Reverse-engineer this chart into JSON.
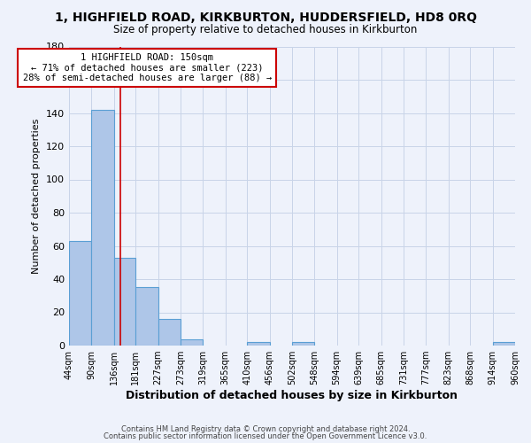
{
  "title": "1, HIGHFIELD ROAD, KIRKBURTON, HUDDERSFIELD, HD8 0RQ",
  "subtitle": "Size of property relative to detached houses in Kirkburton",
  "xlabel": "Distribution of detached houses by size in Kirkburton",
  "ylabel": "Number of detached properties",
  "bin_edges": [
    44,
    90,
    136,
    181,
    227,
    273,
    319,
    365,
    410,
    456,
    502,
    548,
    594,
    639,
    685,
    731,
    777,
    823,
    868,
    914,
    960
  ],
  "bin_labels": [
    "44sqm",
    "90sqm",
    "136sqm",
    "181sqm",
    "227sqm",
    "273sqm",
    "319sqm",
    "365sqm",
    "410sqm",
    "456sqm",
    "502sqm",
    "548sqm",
    "594sqm",
    "639sqm",
    "685sqm",
    "731sqm",
    "777sqm",
    "823sqm",
    "868sqm",
    "914sqm",
    "960sqm"
  ],
  "bar_heights": [
    63,
    142,
    53,
    35,
    16,
    4,
    0,
    0,
    2,
    0,
    2,
    0,
    0,
    0,
    0,
    0,
    0,
    0,
    0,
    2
  ],
  "bar_color": "#aec6e8",
  "bar_edge_color": "#5a9fd4",
  "vline_x": 150,
  "vline_color": "#cc0000",
  "ylim": [
    0,
    180
  ],
  "annotation_text": "1 HIGHFIELD ROAD: 150sqm\n← 71% of detached houses are smaller (223)\n28% of semi-detached houses are larger (88) →",
  "annotation_box_color": "#cc0000",
  "footer1": "Contains HM Land Registry data © Crown copyright and database right 2024.",
  "footer2": "Contains public sector information licensed under the Open Government Licence v3.0.",
  "bg_color": "#eef2fb",
  "grid_color": "#c8d4e8"
}
